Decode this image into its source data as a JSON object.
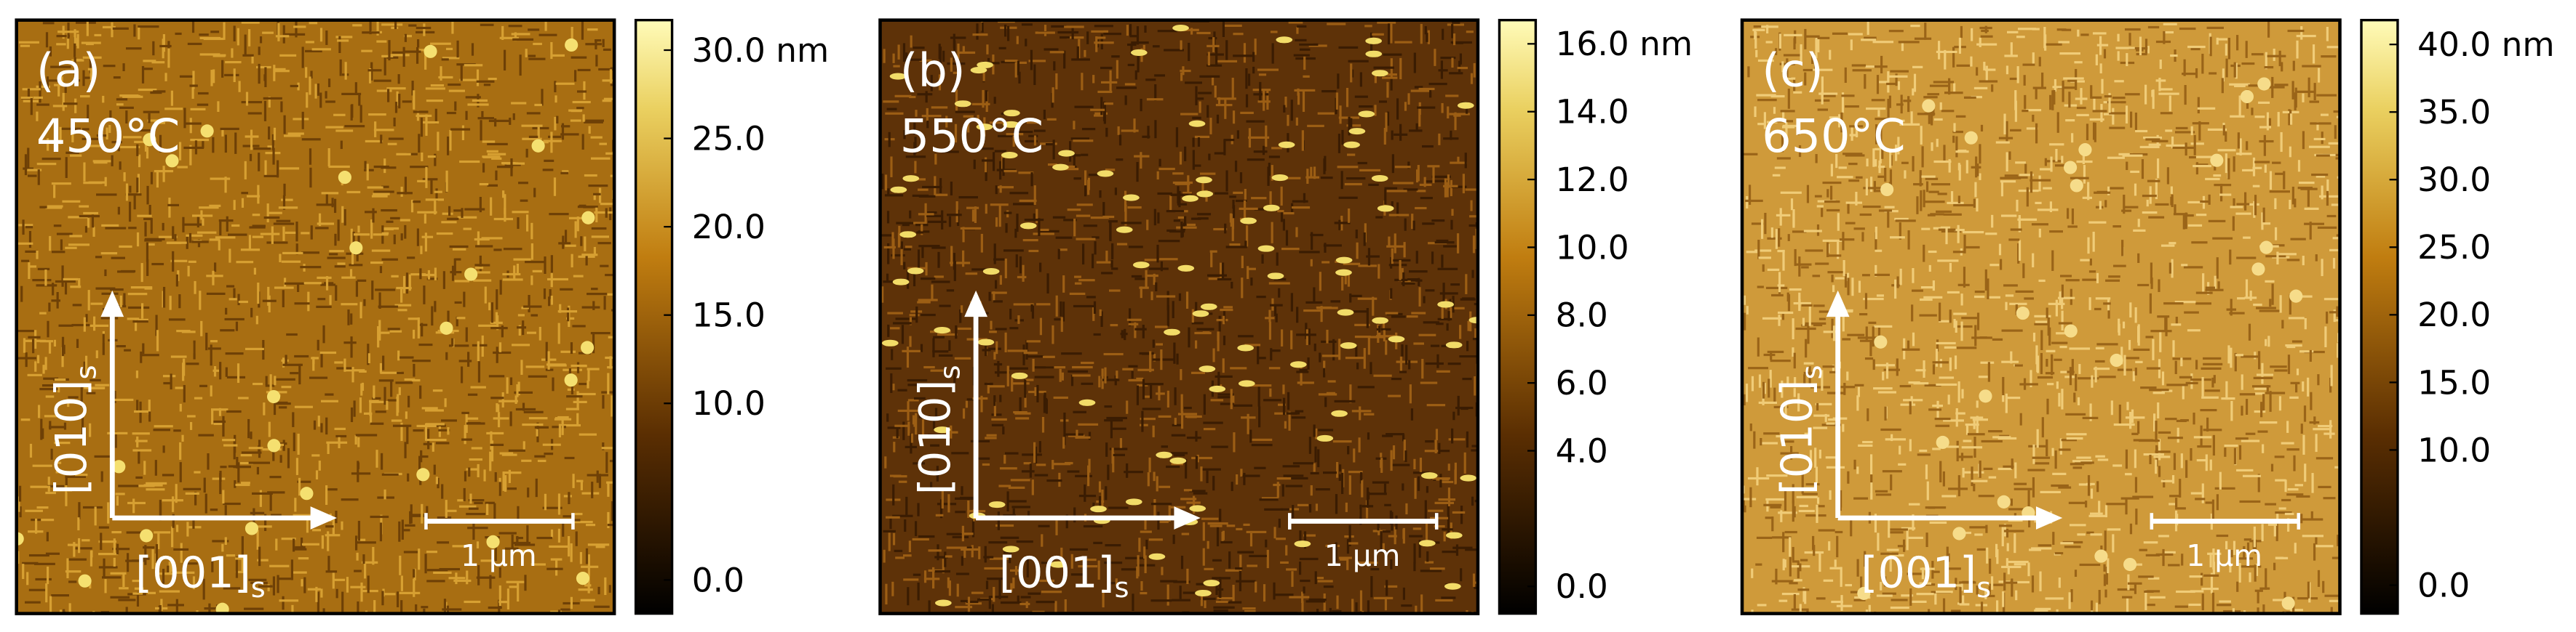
{
  "panels": [
    {
      "label": "(a)",
      "temperature": "450°C",
      "axis_vertical": {
        "text": "[010]",
        "subscript": "s"
      },
      "axis_horizontal": {
        "text": "[001]",
        "subscript": "s"
      },
      "scale_bar": "1 µm",
      "colorbar": {
        "lim": [
          -1.9,
          31.7
        ],
        "ticks": [
          {
            "value": 0,
            "label": "0.0"
          },
          {
            "value": 10,
            "label": "10.0"
          },
          {
            "value": 15,
            "label": "15.0"
          },
          {
            "value": 20,
            "label": "20.0"
          },
          {
            "value": 25,
            "label": "25.0"
          },
          {
            "value": 30,
            "label": "30.0 nm"
          }
        ]
      }
    },
    {
      "label": "(b)",
      "temperature": "550°C",
      "axis_vertical": {
        "text": "[010]",
        "subscript": "s"
      },
      "axis_horizontal": {
        "text": "[001]",
        "subscript": "s"
      },
      "scale_bar": "1 µm",
      "colorbar": {
        "lim": [
          -0.8,
          16.7
        ],
        "ticks": [
          {
            "value": 0,
            "label": "0.0"
          },
          {
            "value": 4,
            "label": "4.0"
          },
          {
            "value": 6,
            "label": "6.0"
          },
          {
            "value": 8,
            "label": "8.0"
          },
          {
            "value": 10,
            "label": "10.0"
          },
          {
            "value": 12,
            "label": "12.0"
          },
          {
            "value": 14,
            "label": "14.0"
          },
          {
            "value": 16,
            "label": "16.0 nm"
          }
        ]
      }
    },
    {
      "label": "(c)",
      "temperature": "650°C",
      "axis_vertical": {
        "text": "[010]",
        "subscript": "s"
      },
      "axis_horizontal": {
        "text": "[001]",
        "subscript": "s"
      },
      "scale_bar": "1 µm",
      "colorbar": {
        "lim": [
          -2.1,
          41.8
        ],
        "ticks": [
          {
            "value": 0,
            "label": "0.0"
          },
          {
            "value": 10,
            "label": "10.0"
          },
          {
            "value": 15,
            "label": "15.0"
          },
          {
            "value": 20,
            "label": "20.0"
          },
          {
            "value": 25,
            "label": "25.0"
          },
          {
            "value": 30,
            "label": "30.0"
          },
          {
            "value": 35,
            "label": "35.0"
          },
          {
            "value": 40,
            "label": "40.0 nm"
          }
        ]
      }
    }
  ]
}
